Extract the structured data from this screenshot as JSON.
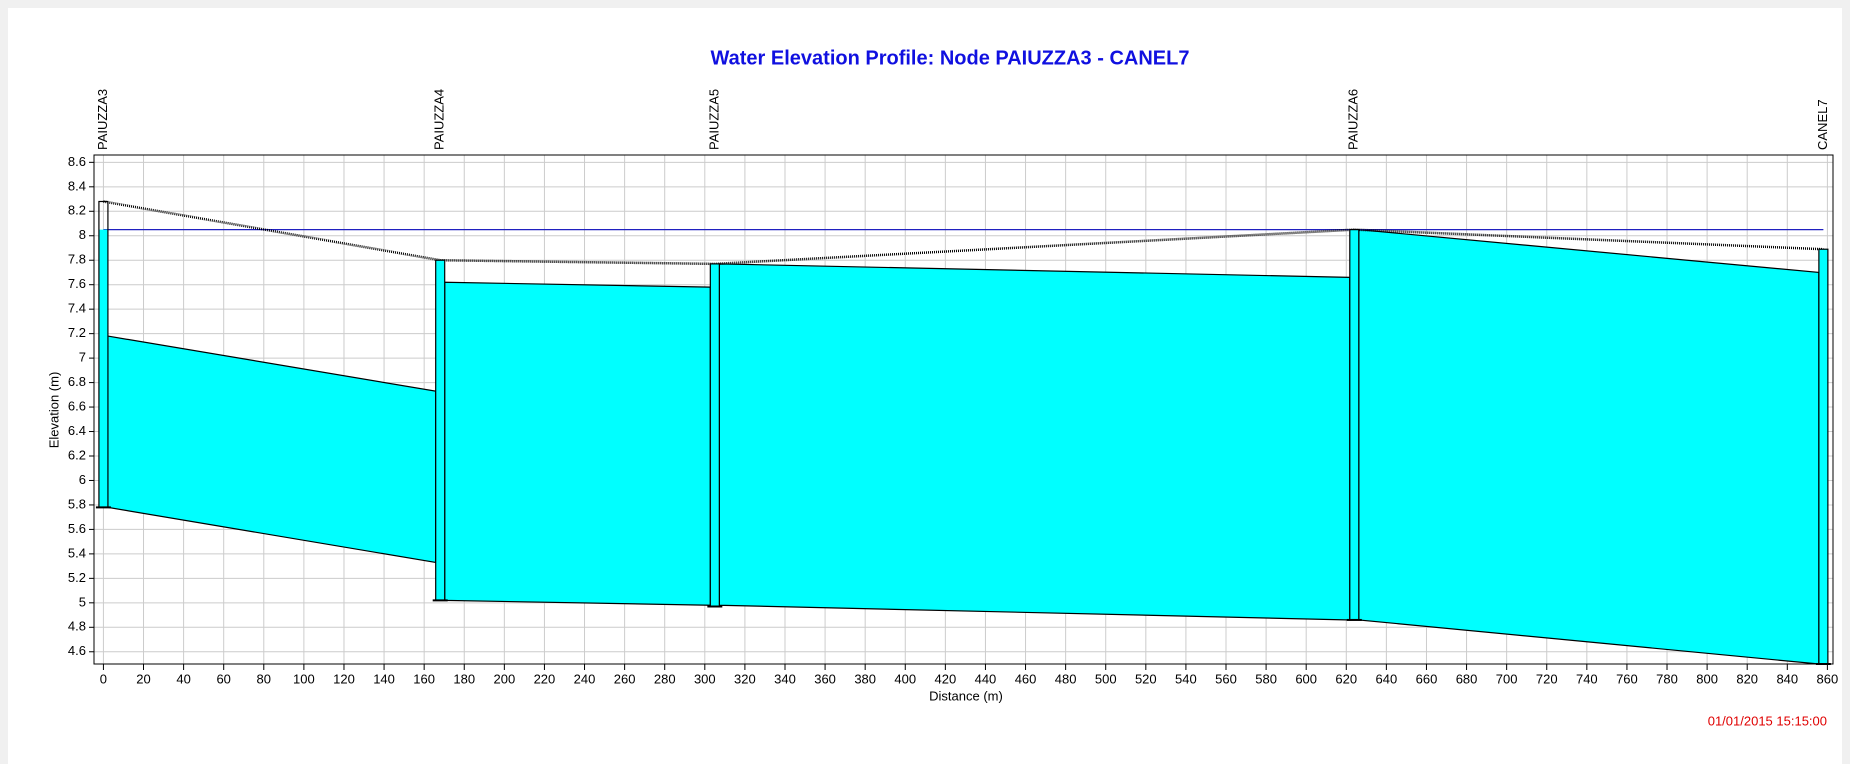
{
  "chart_data": {
    "type": "profile",
    "title": "Water Elevation Profile:  Node PAIUZZA3 - CANEL7",
    "xlabel": "Distance (m)",
    "ylabel": "Elevation (m)",
    "timestamp": "01/01/2015 15:15:00",
    "water_color": "#00ffff",
    "reference_color": "#2020c0",
    "grid": true,
    "xlim": [
      -4.7,
      862.8
    ],
    "ylim": [
      4.5,
      8.66
    ],
    "xticks": [
      0,
      20,
      40,
      60,
      80,
      100,
      120,
      140,
      160,
      180,
      200,
      220,
      240,
      260,
      280,
      300,
      320,
      340,
      360,
      380,
      400,
      420,
      440,
      460,
      480,
      500,
      520,
      540,
      560,
      580,
      600,
      620,
      640,
      660,
      680,
      700,
      720,
      740,
      760,
      780,
      800,
      820,
      840,
      860
    ],
    "yticks": [
      4.6,
      4.8,
      5,
      5.2,
      5.4,
      5.6,
      5.8,
      6,
      6.2,
      6.4,
      6.6,
      6.8,
      7,
      7.2,
      7.4,
      7.6,
      7.8,
      8,
      8.2,
      8.4,
      8.6
    ],
    "nodes": {
      "names": [
        "PAIUZZA3",
        "PAIUZZA4",
        "PAIUZZA5",
        "PAIUZZA6",
        "CANEL7"
      ],
      "distance": [
        0,
        168,
        305,
        624,
        858
      ],
      "invert": [
        5.78,
        5.02,
        4.97,
        4.86,
        4.5
      ],
      "ground": [
        8.28,
        7.8,
        7.77,
        8.05,
        7.89
      ],
      "water": [
        8.05,
        7.8,
        7.77,
        8.05,
        7.89
      ]
    },
    "links": {
      "start_water": [
        7.18,
        7.62,
        7.77,
        8.05
      ],
      "end_water": [
        6.73,
        7.58,
        7.66,
        7.7
      ],
      "start_invert": [
        5.78,
        5.02,
        4.98,
        4.86
      ],
      "end_invert": [
        5.33,
        4.98,
        4.86,
        4.5
      ]
    },
    "reference_level": 8.05
  }
}
